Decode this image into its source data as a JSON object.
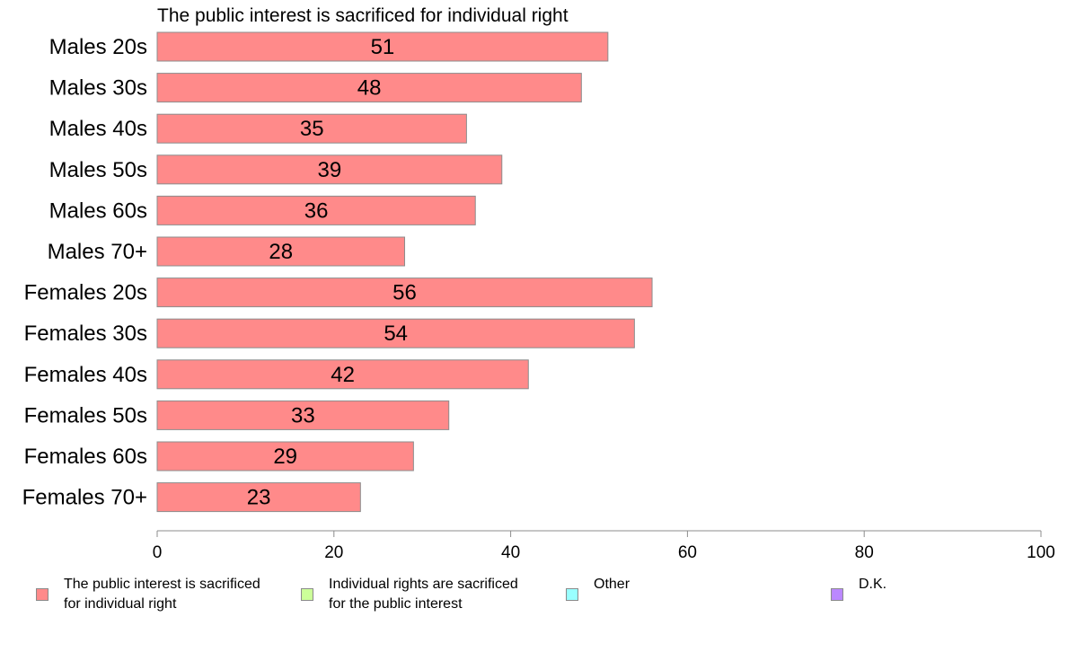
{
  "chart_data": {
    "type": "bar",
    "orientation": "horizontal",
    "title": "The public interest is sacrificed for individual right",
    "categories": [
      "Males 20s",
      "Males 30s",
      "Males 40s",
      "Males 50s",
      "Males 60s",
      "Males 70+",
      "Females 20s",
      "Females 30s",
      "Females 40s",
      "Females 50s",
      "Females 60s",
      "Females 70+"
    ],
    "series": [
      {
        "name": "The public interest is sacrificed\nfor individual right",
        "color": "#ff8a8a",
        "values": [
          51,
          48,
          35,
          39,
          36,
          28,
          56,
          54,
          42,
          33,
          29,
          23
        ]
      }
    ],
    "xlim": [
      0,
      100
    ],
    "xticks": [
      0,
      20,
      40,
      60,
      80,
      100
    ],
    "grid": false,
    "legend_placement": "bottom",
    "legend": [
      {
        "label": "The public interest is sacrificed\nfor individual right",
        "color": "#ff8a8a"
      },
      {
        "label": "Individual rights are sacrificed\nfor the public interest",
        "color": "#ccff99"
      },
      {
        "label": "Other",
        "color": "#99ffff"
      },
      {
        "label": "D.K.",
        "color": "#bb88ff"
      }
    ]
  }
}
